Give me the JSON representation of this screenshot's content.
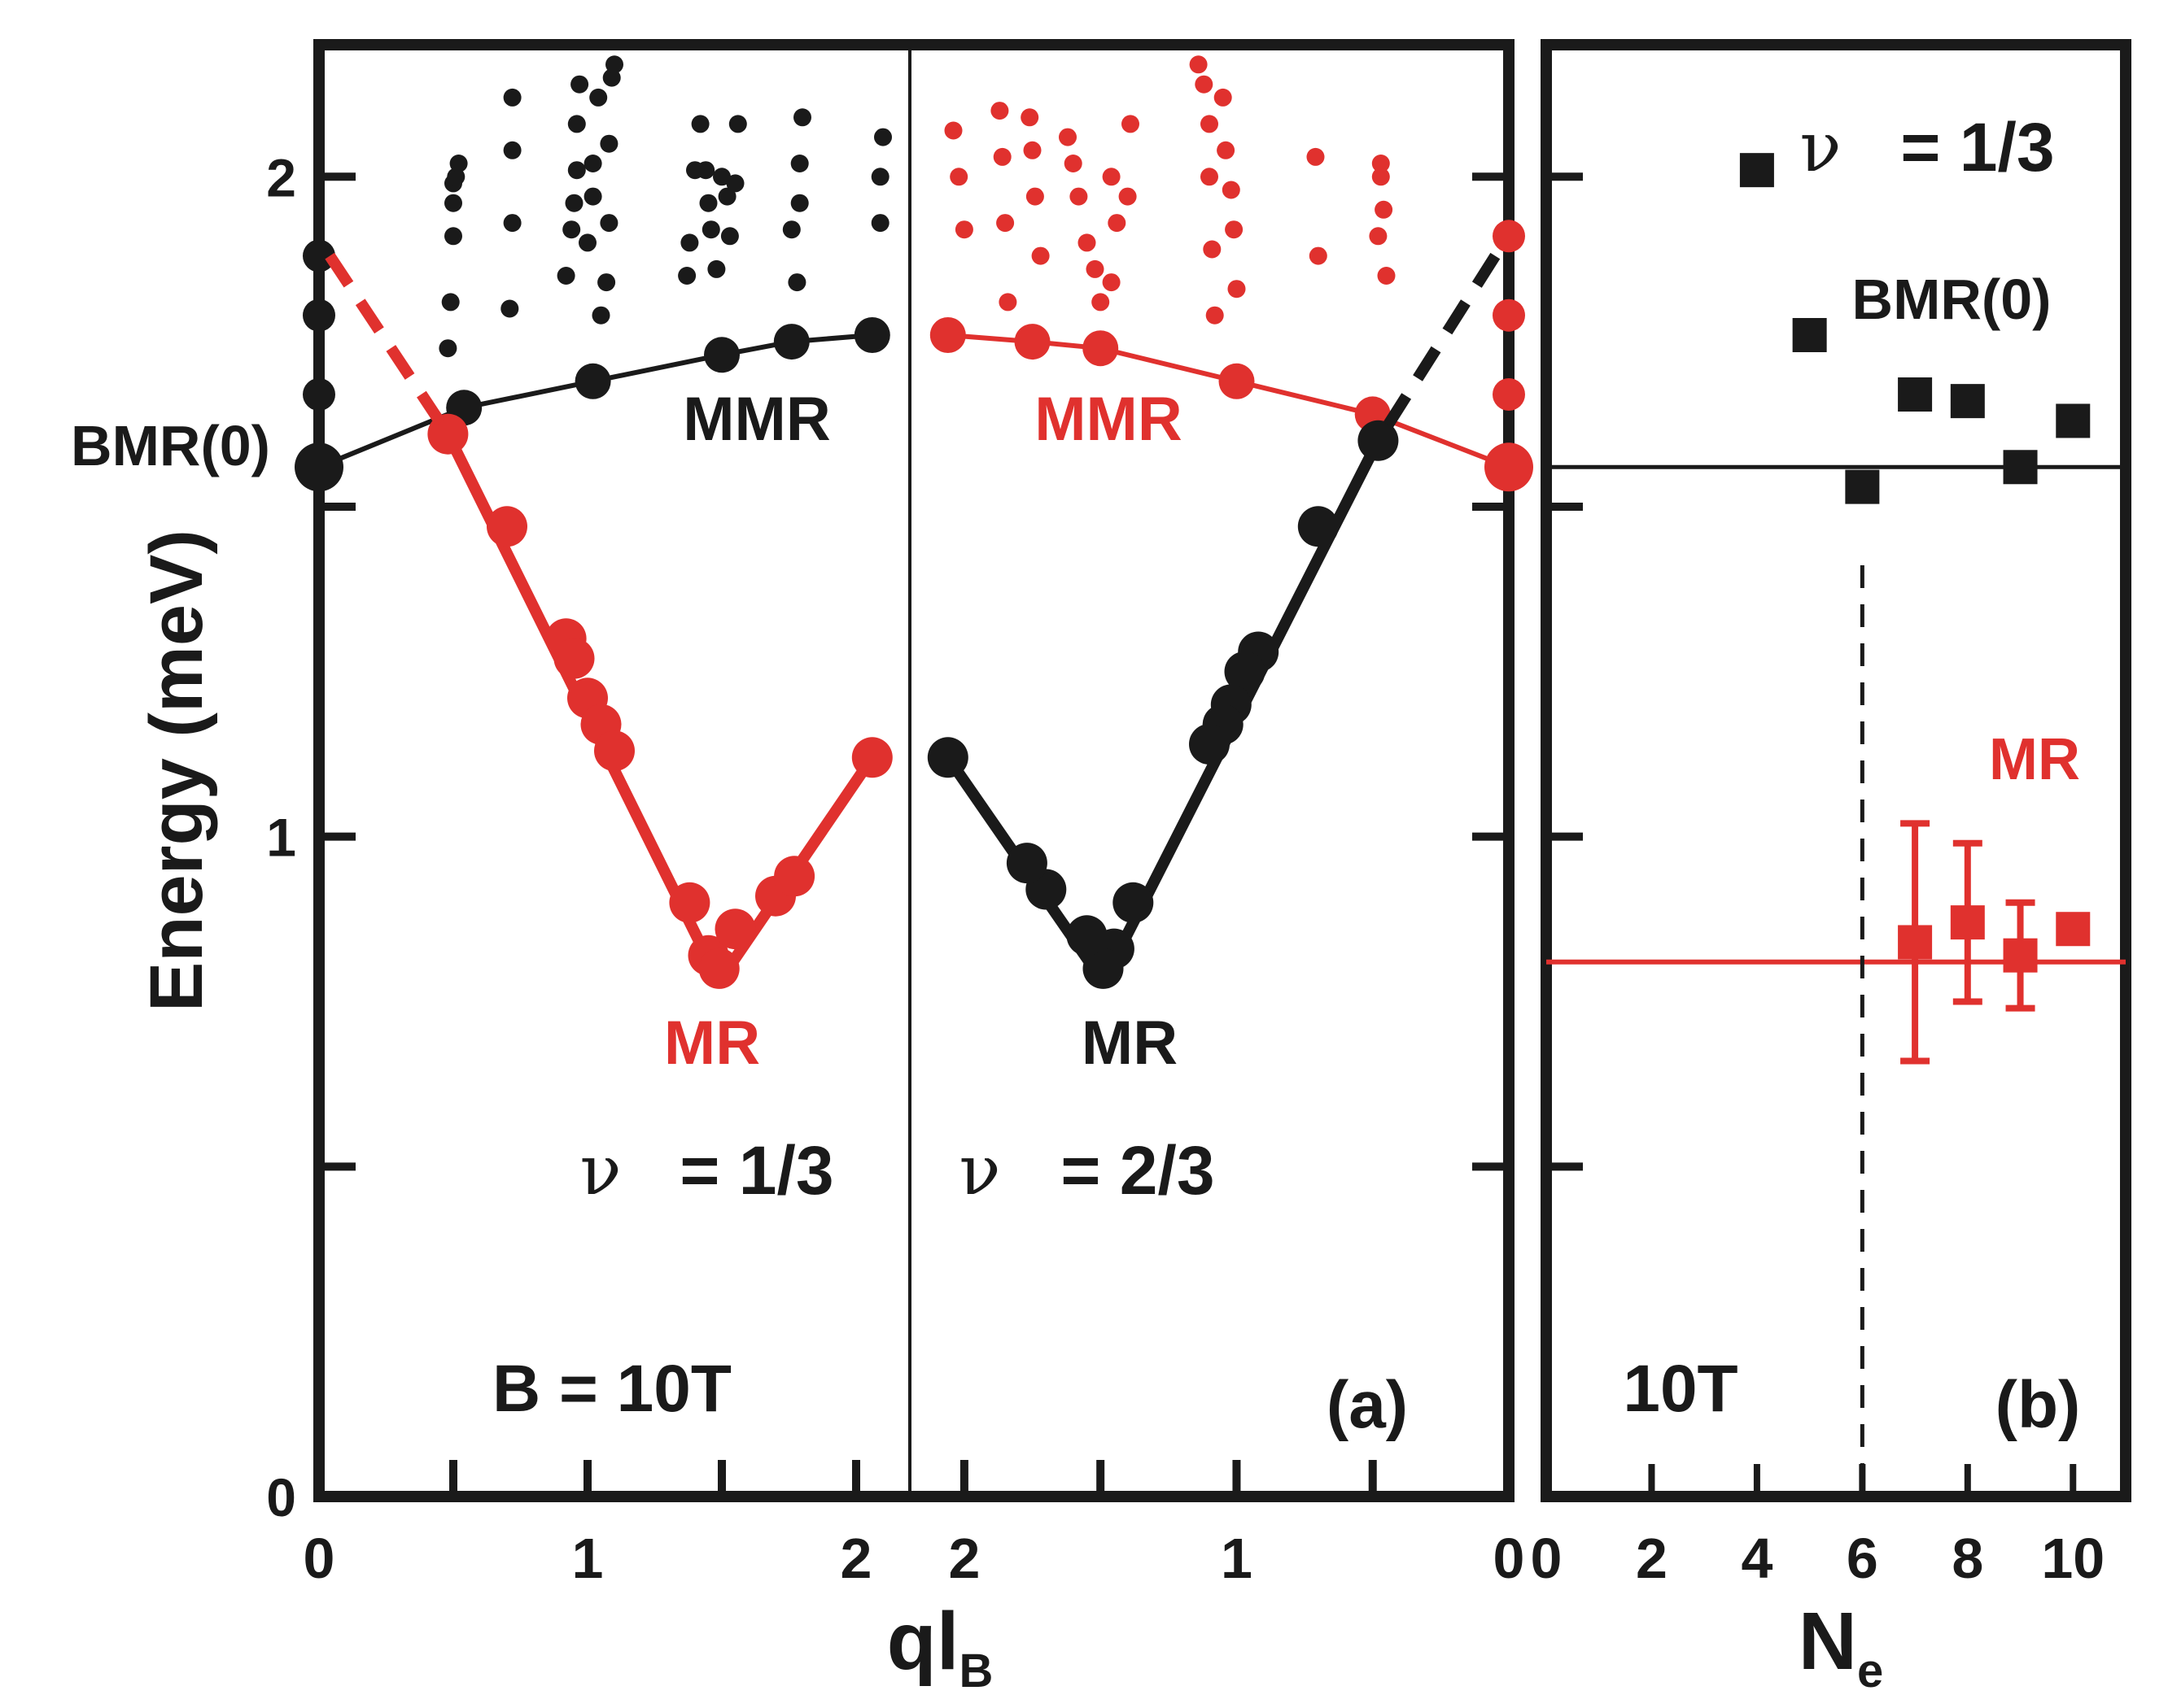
{
  "colors": {
    "black": "#1a1a1a",
    "red": "#e0312e"
  },
  "chart_data": [
    {
      "type": "scatter",
      "panel": "a",
      "panel_label": "(a)",
      "xlabel": "ql",
      "xlabel_sub": "B",
      "ylabel": "Energy (meV)",
      "ylim": [
        0,
        2.2
      ],
      "yticks": [
        0,
        0.5,
        1,
        1.5,
        2
      ],
      "ytick_labels": [
        "0",
        "",
        "1",
        "",
        "2"
      ],
      "left_half": {
        "xlim": [
          0,
          2.2
        ],
        "xtick_labels": [
          "0",
          "1",
          "2"
        ],
        "xtick_values": [
          0,
          1,
          2
        ]
      },
      "right_half": {
        "xlim": [
          2.2,
          0
        ],
        "xtick_labels": [
          "2",
          "1",
          "0"
        ],
        "xtick_values": [
          2,
          1,
          0
        ]
      },
      "annotations": {
        "bmr0": "BMR(0)",
        "mmr_left": "MMR",
        "mmr_right": "MMR",
        "mr_left": "MR",
        "mr_right": "MR",
        "nu_left_sym": "ν",
        "nu_left_val": "= 1/3",
        "nu_right_sym": "ν",
        "nu_right_val": "= 2/3",
        "field": "B = 10T"
      },
      "series": [
        {
          "half": "left",
          "color": "black",
          "role": "MMR",
          "points": [
            [
              0,
              1.56
            ],
            [
              0.54,
              1.65
            ],
            [
              1.02,
              1.69
            ],
            [
              1.5,
              1.73
            ],
            [
              1.76,
              1.75
            ],
            [
              2.06,
              1.76
            ]
          ]
        },
        {
          "half": "left",
          "color": "black",
          "role": "BMR(0) stack",
          "points": [
            [
              0,
              1.67
            ],
            [
              0,
              1.79
            ],
            [
              0,
              1.88
            ]
          ]
        },
        {
          "half": "left",
          "color": "red",
          "role": "MR",
          "points": [
            [
              0.48,
              1.61
            ],
            [
              0.7,
              1.47
            ],
            [
              0.92,
              1.3
            ],
            [
              0.95,
              1.27
            ],
            [
              1.0,
              1.21
            ],
            [
              1.05,
              1.17
            ],
            [
              1.1,
              1.13
            ],
            [
              1.38,
              0.9
            ],
            [
              1.45,
              0.82
            ],
            [
              1.49,
              0.8
            ],
            [
              1.55,
              0.86
            ],
            [
              1.7,
              0.91
            ],
            [
              1.77,
              0.94
            ],
            [
              2.06,
              1.12
            ]
          ]
        },
        {
          "half": "left",
          "color": "red",
          "role": "extrapolation",
          "dashed": true,
          "points": [
            [
              0.04,
              1.88
            ],
            [
              0.48,
              1.61
            ]
          ]
        },
        {
          "half": "left",
          "color": "black",
          "role": "continuum",
          "points": [
            [
              0.48,
              1.74
            ],
            [
              0.49,
              1.81
            ],
            [
              0.5,
              1.91
            ],
            [
              0.5,
              1.96
            ],
            [
              0.5,
              1.99
            ],
            [
              0.51,
              2.0
            ],
            [
              0.52,
              2.02
            ],
            [
              0.71,
              1.8
            ],
            [
              0.72,
              1.93
            ],
            [
              0.72,
              2.04
            ],
            [
              0.72,
              2.12
            ],
            [
              0.92,
              1.85
            ],
            [
              0.94,
              1.92
            ],
            [
              0.95,
              1.96
            ],
            [
              0.96,
              2.01
            ],
            [
              0.96,
              2.08
            ],
            [
              0.97,
              2.14
            ],
            [
              1.0,
              1.9
            ],
            [
              1.02,
              1.97
            ],
            [
              1.02,
              2.02
            ],
            [
              1.04,
              2.12
            ],
            [
              1.05,
              1.79
            ],
            [
              1.07,
              1.84
            ],
            [
              1.08,
              1.93
            ],
            [
              1.08,
              2.05
            ],
            [
              1.09,
              2.15
            ],
            [
              1.1,
              2.17
            ],
            [
              1.37,
              1.85
            ],
            [
              1.38,
              1.9
            ],
            [
              1.4,
              2.01
            ],
            [
              1.42,
              2.08
            ],
            [
              1.44,
              2.01
            ],
            [
              1.45,
              1.96
            ],
            [
              1.46,
              1.92
            ],
            [
              1.48,
              1.86
            ],
            [
              1.5,
              2.0
            ],
            [
              1.52,
              1.97
            ],
            [
              1.53,
              1.91
            ],
            [
              1.55,
              1.99
            ],
            [
              1.56,
              2.08
            ],
            [
              1.76,
              1.92
            ],
            [
              1.78,
              1.84
            ],
            [
              1.79,
              1.96
            ],
            [
              1.79,
              2.02
            ],
            [
              1.8,
              2.09
            ],
            [
              2.09,
              1.93
            ],
            [
              2.09,
              2.0
            ],
            [
              2.1,
              2.06
            ]
          ]
        },
        {
          "half": "right",
          "color": "red",
          "role": "MMR",
          "points": [
            [
              0,
              1.56
            ],
            [
              0.5,
              1.64
            ],
            [
              1.0,
              1.69
            ],
            [
              1.5,
              1.74
            ],
            [
              1.75,
              1.75
            ],
            [
              2.06,
              1.76
            ]
          ]
        },
        {
          "half": "right",
          "color": "red",
          "role": "BMR(0) stack",
          "points": [
            [
              0,
              1.67
            ],
            [
              0,
              1.79
            ],
            [
              0,
              1.91
            ]
          ]
        },
        {
          "half": "right",
          "color": "black",
          "role": "MR",
          "points": [
            [
              0.48,
              1.6
            ],
            [
              0.7,
              1.47
            ],
            [
              0.92,
              1.28
            ],
            [
              0.97,
              1.25
            ],
            [
              1.02,
              1.2
            ],
            [
              1.05,
              1.17
            ],
            [
              1.1,
              1.14
            ],
            [
              1.38,
              0.9
            ],
            [
              1.45,
              0.83
            ],
            [
              1.49,
              0.8
            ],
            [
              1.55,
              0.85
            ],
            [
              1.7,
              0.92
            ],
            [
              1.77,
              0.96
            ],
            [
              2.06,
              1.12
            ]
          ]
        },
        {
          "half": "right",
          "color": "black",
          "role": "extrapolation",
          "dashed": true,
          "points": [
            [
              0.05,
              1.88
            ],
            [
              0.48,
              1.6
            ]
          ]
        },
        {
          "half": "right",
          "color": "red",
          "role": "continuum",
          "points": [
            [
              0.45,
              1.85
            ],
            [
              0.46,
              1.95
            ],
            [
              0.47,
              2.0
            ],
            [
              0.47,
              2.02
            ],
            [
              0.48,
              1.91
            ],
            [
              0.7,
              1.88
            ],
            [
              0.71,
              2.03
            ],
            [
              1.0,
              1.83
            ],
            [
              1.01,
              1.92
            ],
            [
              1.02,
              1.98
            ],
            [
              1.04,
              2.04
            ],
            [
              1.05,
              2.12
            ],
            [
              1.08,
              1.79
            ],
            [
              1.09,
              1.89
            ],
            [
              1.1,
              2.0
            ],
            [
              1.1,
              2.08
            ],
            [
              1.12,
              2.14
            ],
            [
              1.14,
              2.17
            ],
            [
              1.5,
              1.81
            ],
            [
              1.52,
              1.86
            ],
            [
              1.55,
              1.9
            ],
            [
              1.58,
              1.97
            ],
            [
              1.6,
              2.02
            ],
            [
              1.62,
              2.06
            ],
            [
              1.46,
              2.0
            ],
            [
              1.44,
              1.93
            ],
            [
              1.46,
              1.84
            ],
            [
              1.4,
              1.97
            ],
            [
              1.39,
              2.08
            ],
            [
              1.72,
              1.88
            ],
            [
              1.74,
              1.97
            ],
            [
              1.75,
              2.04
            ],
            [
              1.76,
              2.09
            ],
            [
              1.84,
              1.81
            ],
            [
              1.85,
              1.93
            ],
            [
              1.86,
              2.03
            ],
            [
              1.87,
              2.1
            ],
            [
              2.0,
              1.92
            ],
            [
              2.02,
              2.0
            ],
            [
              2.04,
              2.07
            ]
          ]
        }
      ]
    },
    {
      "type": "scatter",
      "panel": "b",
      "panel_label": "(b)",
      "xlabel": "N",
      "xlabel_sub": "e",
      "xlim": [
        0,
        11
      ],
      "xticks": [
        0,
        2,
        4,
        6,
        8,
        10
      ],
      "xtick_labels": [
        "0",
        "2",
        "4",
        "6",
        "8",
        "10"
      ],
      "ylim": [
        0,
        2.2
      ],
      "annotations": {
        "nu_sym": "ν",
        "nu_val": "= 1/3",
        "bmr0": "BMR(0)",
        "mr": "MR",
        "field": "10T"
      },
      "bmr0_reference_energy": 1.56,
      "mr_reference_energy": 0.81,
      "dashed_vertical_x": 6,
      "series": [
        {
          "name": "BMR(0)",
          "color": "black",
          "marker": "square",
          "x": [
            4,
            5,
            6,
            7,
            8,
            9,
            10
          ],
          "y": [
            2.01,
            1.76,
            1.53,
            1.67,
            1.66,
            1.56,
            1.63
          ]
        },
        {
          "name": "MR",
          "color": "red",
          "marker": "square",
          "x": [
            7,
            8,
            9,
            10
          ],
          "y": [
            0.84,
            0.87,
            0.82,
            0.86
          ],
          "err": [
            0.18,
            0.12,
            0.08,
            0.02
          ]
        }
      ]
    }
  ]
}
